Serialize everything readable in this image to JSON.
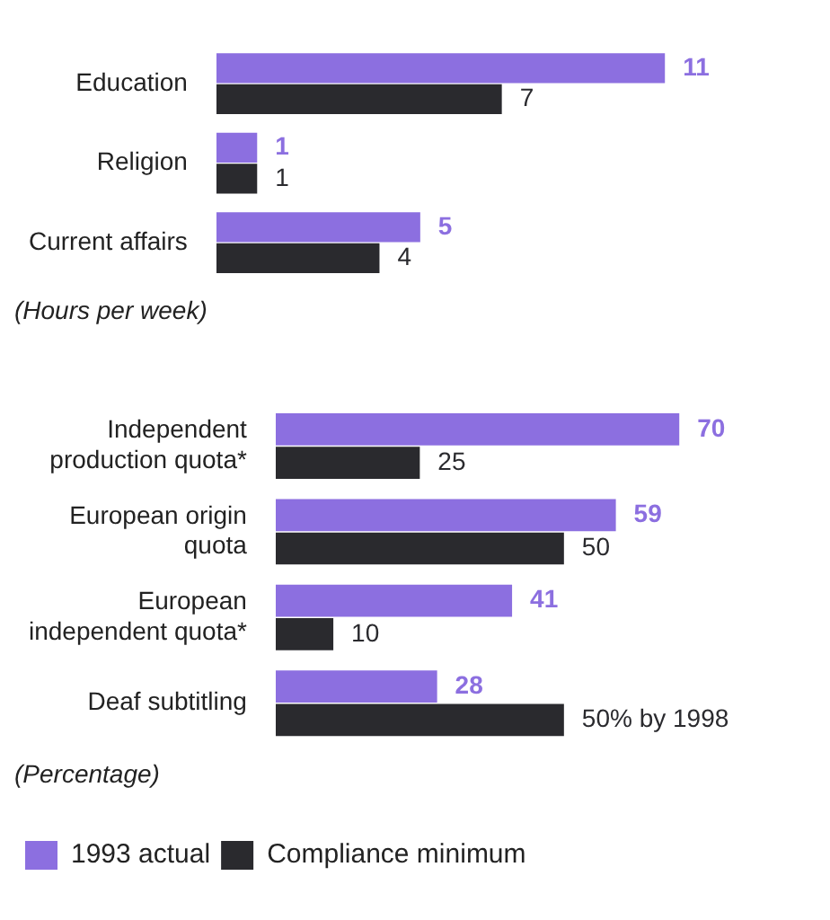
{
  "chart_data": [
    {
      "type": "bar",
      "orientation": "horizontal",
      "categories": [
        "Education",
        "Religion",
        "Current affairs"
      ],
      "series": [
        {
          "color": "#8c6fe0",
          "values": [
            11,
            1,
            5
          ]
        },
        {
          "color": "#2a2a2e",
          "values": [
            7,
            1,
            4
          ]
        }
      ],
      "data_labels": true,
      "annotations": [
        "(Hours per week)"
      ],
      "legend": false,
      "tick_labels": "y"
    },
    {
      "type": "bar",
      "orientation": "horizontal",
      "categories": [
        "Independent production quota*",
        "European origin quota",
        "European independent quota*",
        "Deaf subtitling"
      ],
      "series": [
        {
          "name": "1993 actual",
          "color": "#8c6fe0",
          "values": [
            70,
            59,
            41,
            28
          ],
          "value_labels": [
            "70",
            "59",
            "41",
            "28"
          ]
        },
        {
          "name": "Compliance minimum",
          "color": "#2a2a2e",
          "values": [
            25,
            50,
            10,
            50
          ],
          "value_labels": [
            "25",
            "50",
            "10",
            "50% by 1998"
          ]
        }
      ],
      "annotations": [
        "(Percentage)"
      ],
      "legend": "bottom",
      "tick_labels": "y"
    }
  ]
}
